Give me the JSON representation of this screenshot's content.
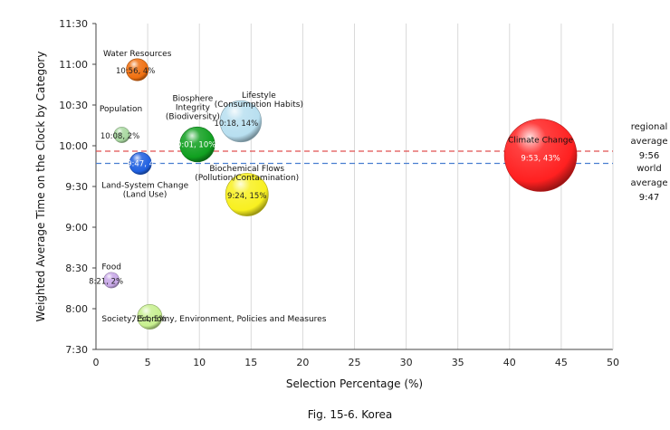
{
  "caption": "Fig. 15-6. Korea",
  "chart_data": {
    "type": "scatter",
    "subtype": "bubble",
    "xlabel": "Selection Percentage (%)",
    "ylabel": "Weighted Average Time on the Clock by Category",
    "xlim": [
      0,
      50
    ],
    "ylim": [
      "7:30",
      "11:30"
    ],
    "x_ticks": [
      "0",
      "5",
      "10",
      "15",
      "20",
      "25",
      "30",
      "35",
      "40",
      "45",
      "50"
    ],
    "y_ticks": [
      "7:30",
      "8:00",
      "8:30",
      "9:00",
      "9:30",
      "10:00",
      "10:30",
      "11:00",
      "11:30"
    ],
    "grid": "vertical",
    "bubbles": [
      {
        "name": "Water Resources",
        "x": 4,
        "y": "10:56",
        "value": 4,
        "data_label": "10:56, 4%",
        "color": "#f07010"
      },
      {
        "name": "Population",
        "x": 2.5,
        "y": "10:08",
        "value": 2,
        "data_label": "10:08, 2%",
        "color": "#a8d8a0"
      },
      {
        "name": "Biosphere Integrity (Biodiversity)",
        "x": 9.8,
        "y": "10:01",
        "value": 10,
        "data_label": "10:01, 10%",
        "color": "#10a020"
      },
      {
        "name": "Lifestyle (Consumption Habits)",
        "x": 14,
        "y": "10:18",
        "value": 14,
        "data_label": "10:18, 14%",
        "color": "#b8dff0"
      },
      {
        "name": "Land-System Change (Land Use)",
        "x": 4.3,
        "y": "9:47",
        "value": 4,
        "data_label": "9:47, 4%",
        "color": "#2060e0"
      },
      {
        "name": "Biochemical Flows (Pollution/Contamination)",
        "x": 14.6,
        "y": "9:24",
        "value": 15,
        "data_label": "9:24, 15%",
        "color": "#f8f020"
      },
      {
        "name": "Food",
        "x": 1.5,
        "y": "8:21",
        "value": 2,
        "data_label": "8:21, 2%",
        "color": "#c8a8e8"
      },
      {
        "name": "Society, Economy, Environment, Policies and Measures",
        "x": 5.2,
        "y": "7:54",
        "value": 5,
        "data_label": "7:54, 5%",
        "color": "#c8f090"
      },
      {
        "name": "Climate Change",
        "x": 43,
        "y": "9:53",
        "value": 43,
        "data_label": "9:53, 43%",
        "color": "#ff2020"
      }
    ],
    "reference_lines": [
      {
        "label": "regional average 9:56",
        "label_lines": [
          "regional",
          "average",
          "9:56"
        ],
        "y": "9:56",
        "color": "#e05050",
        "style": "dashed"
      },
      {
        "label": "world average 9:47",
        "label_lines": [
          "world",
          "average",
          "9:47"
        ],
        "y": "9:47",
        "color": "#4a7fd0",
        "style": "dashed"
      }
    ]
  }
}
